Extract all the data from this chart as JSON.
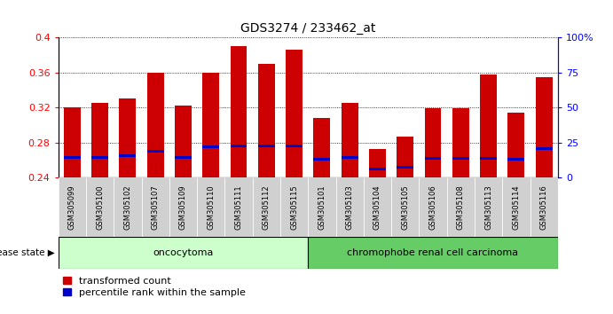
{
  "title": "GDS3274 / 233462_at",
  "samples": [
    "GSM305099",
    "GSM305100",
    "GSM305102",
    "GSM305107",
    "GSM305109",
    "GSM305110",
    "GSM305111",
    "GSM305112",
    "GSM305115",
    "GSM305101",
    "GSM305103",
    "GSM305104",
    "GSM305105",
    "GSM305106",
    "GSM305108",
    "GSM305113",
    "GSM305114",
    "GSM305116"
  ],
  "transformed_counts": [
    0.32,
    0.325,
    0.33,
    0.36,
    0.322,
    0.36,
    0.39,
    0.37,
    0.386,
    0.308,
    0.325,
    0.273,
    0.287,
    0.319,
    0.319,
    0.358,
    0.314,
    0.355
  ],
  "percentile_values": [
    0.263,
    0.263,
    0.265,
    0.27,
    0.263,
    0.275,
    0.276,
    0.276,
    0.276,
    0.261,
    0.263,
    0.25,
    0.252,
    0.262,
    0.262,
    0.262,
    0.261,
    0.273
  ],
  "bar_bottom": 0.24,
  "ylim": [
    0.24,
    0.4
  ],
  "yticks_left": [
    0.24,
    0.28,
    0.32,
    0.36,
    0.4
  ],
  "yticks_right": [
    0,
    25,
    50,
    75,
    100
  ],
  "yticks_right_labels": [
    "0",
    "25",
    "50",
    "75",
    "100%"
  ],
  "bar_color": "#cc0000",
  "blue_color": "#0000cc",
  "group1_label": "oncocytoma",
  "group2_label": "chromophobe renal cell carcinoma",
  "group1_count": 9,
  "group2_count": 9,
  "group1_bg": "#ccffcc",
  "group2_bg": "#66cc66",
  "legend_red_label": "transformed count",
  "legend_blue_label": "percentile rank within the sample",
  "disease_state_label": "disease state",
  "title_fontsize": 10,
  "bar_width": 0.6
}
